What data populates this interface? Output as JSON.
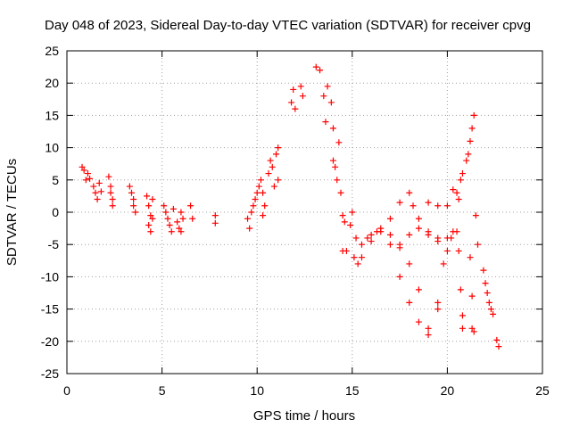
{
  "chart_data": {
    "type": "scatter",
    "title": "Day 048 of 2023, Sidereal Day-to-day VTEC variation (SDTVAR) for receiver cpvg",
    "xlabel": "GPS time / hours",
    "ylabel": "SDTVAR / TECUs",
    "xlim": [
      0,
      25
    ],
    "ylim": [
      -25,
      25
    ],
    "xticks": [
      "0",
      "5",
      "10",
      "15",
      "20",
      "25"
    ],
    "yticks": [
      "25",
      "20",
      "15",
      "10",
      "5",
      "0",
      "-5",
      "-10",
      "-15",
      "-20",
      "-25"
    ],
    "grid": true,
    "marker": "+",
    "color": "#ff0000",
    "series": [
      {
        "name": "SDTVAR",
        "points": [
          [
            0.8,
            7.0
          ],
          [
            0.9,
            6.5
          ],
          [
            1.0,
            5.0
          ],
          [
            1.1,
            6.0
          ],
          [
            1.2,
            5.2
          ],
          [
            1.4,
            4.0
          ],
          [
            1.5,
            3.0
          ],
          [
            1.6,
            2.0
          ],
          [
            1.7,
            4.5
          ],
          [
            1.8,
            3.2
          ],
          [
            2.2,
            5.5
          ],
          [
            2.3,
            4.0
          ],
          [
            2.3,
            3.0
          ],
          [
            2.4,
            2.0
          ],
          [
            2.4,
            1.0
          ],
          [
            3.3,
            4.0
          ],
          [
            3.4,
            3.0
          ],
          [
            3.5,
            2.0
          ],
          [
            3.5,
            1.0
          ],
          [
            3.6,
            0.0
          ],
          [
            4.2,
            2.5
          ],
          [
            4.3,
            1.0
          ],
          [
            4.4,
            -0.5
          ],
          [
            4.3,
            -2.0
          ],
          [
            4.4,
            -3.0
          ],
          [
            4.5,
            2.0
          ],
          [
            4.5,
            -1.0
          ],
          [
            5.1,
            1.0
          ],
          [
            5.2,
            0.0
          ],
          [
            5.3,
            -1.0
          ],
          [
            5.4,
            -2.0
          ],
          [
            5.5,
            -3.0
          ],
          [
            5.6,
            0.5
          ],
          [
            5.8,
            -1.5
          ],
          [
            5.9,
            -2.5
          ],
          [
            6.0,
            -3.0
          ],
          [
            6.0,
            0.0
          ],
          [
            6.1,
            -1.0
          ],
          [
            6.5,
            1.0
          ],
          [
            6.6,
            -1.0
          ],
          [
            7.8,
            -0.5
          ],
          [
            7.8,
            -1.7
          ],
          [
            9.5,
            -1.0
          ],
          [
            9.6,
            -2.5
          ],
          [
            9.7,
            0.0
          ],
          [
            9.8,
            1.0
          ],
          [
            9.9,
            2.0
          ],
          [
            10.0,
            3.0
          ],
          [
            10.1,
            4.0
          ],
          [
            10.2,
            5.0
          ],
          [
            10.3,
            3.0
          ],
          [
            10.3,
            -0.5
          ],
          [
            10.4,
            1.0
          ],
          [
            10.6,
            6.0
          ],
          [
            10.7,
            8.0
          ],
          [
            10.8,
            7.0
          ],
          [
            10.9,
            4.0
          ],
          [
            11.0,
            9.0
          ],
          [
            11.1,
            10.0
          ],
          [
            11.1,
            5.0
          ],
          [
            11.8,
            17.0
          ],
          [
            11.9,
            19.0
          ],
          [
            12.0,
            16.0
          ],
          [
            12.3,
            19.5
          ],
          [
            12.4,
            18.0
          ],
          [
            13.1,
            22.5
          ],
          [
            13.3,
            22.0
          ],
          [
            13.5,
            18.0
          ],
          [
            13.6,
            14.0
          ],
          [
            13.7,
            19.5
          ],
          [
            13.9,
            17.0
          ],
          [
            14.0,
            13.0
          ],
          [
            14.0,
            8.0
          ],
          [
            14.1,
            7.0
          ],
          [
            14.2,
            5.0
          ],
          [
            14.3,
            10.8
          ],
          [
            14.4,
            3.0
          ],
          [
            14.5,
            -0.5
          ],
          [
            14.6,
            -1.5
          ],
          [
            14.5,
            -6.0
          ],
          [
            14.7,
            -6.0
          ],
          [
            14.9,
            -2.0
          ],
          [
            15.0,
            0.0
          ],
          [
            15.1,
            -7.0
          ],
          [
            15.2,
            -4.0
          ],
          [
            15.3,
            -8.0
          ],
          [
            15.5,
            -5.0
          ],
          [
            15.8,
            -4.0
          ],
          [
            16.0,
            -3.5
          ],
          [
            16.5,
            -2.5
          ],
          [
            17.0,
            -1.0
          ],
          [
            17.5,
            1.5
          ],
          [
            18.0,
            3.0
          ],
          [
            15.5,
            -7.0
          ],
          [
            16.0,
            -4.5
          ],
          [
            16.5,
            -3.0
          ],
          [
            17.0,
            -5.0
          ],
          [
            17.5,
            -10.0
          ],
          [
            18.0,
            -14.0
          ],
          [
            18.5,
            -17.0
          ],
          [
            19.0,
            -18.0
          ],
          [
            19.5,
            -14.0
          ],
          [
            19.8,
            -8.0
          ],
          [
            20.2,
            -4.0
          ],
          [
            16.3,
            -3.0
          ],
          [
            17.0,
            -3.5
          ],
          [
            17.5,
            -5.0
          ],
          [
            18.0,
            -8.0
          ],
          [
            18.5,
            -12.0
          ],
          [
            19.0,
            -19.0
          ],
          [
            19.5,
            -15.0
          ],
          [
            20.0,
            -6.0
          ],
          [
            20.3,
            -3.0
          ],
          [
            17.5,
            -5.5
          ],
          [
            18.0,
            -3.5
          ],
          [
            18.5,
            -2.5
          ],
          [
            19.0,
            -3.0
          ],
          [
            19.5,
            -4.5
          ],
          [
            20.0,
            -4.0
          ],
          [
            20.5,
            -3.0
          ],
          [
            18.2,
            1.0
          ],
          [
            18.5,
            -1.0
          ],
          [
            19.0,
            -3.5
          ],
          [
            19.5,
            -4.0
          ],
          [
            19.0,
            1.5
          ],
          [
            19.5,
            1.0
          ],
          [
            20.0,
            1.0
          ],
          [
            20.3,
            3.5
          ],
          [
            20.5,
            3.0
          ],
          [
            20.6,
            2.0
          ],
          [
            20.6,
            -6.0
          ],
          [
            20.7,
            -12.0
          ],
          [
            20.8,
            -16.0
          ],
          [
            20.8,
            -18.0
          ],
          [
            20.7,
            5.0
          ],
          [
            20.8,
            6.0
          ],
          [
            21.0,
            8.0
          ],
          [
            21.1,
            9.0
          ],
          [
            21.2,
            11.0
          ],
          [
            21.3,
            13.0
          ],
          [
            21.4,
            15.0
          ],
          [
            21.2,
            -7.0
          ],
          [
            21.3,
            -13.0
          ],
          [
            21.3,
            -18.0
          ],
          [
            21.4,
            -18.5
          ],
          [
            21.5,
            -0.5
          ],
          [
            21.6,
            -5.0
          ],
          [
            21.9,
            -9.0
          ],
          [
            22.0,
            -11.0
          ],
          [
            22.1,
            -12.5
          ],
          [
            22.2,
            -14.0
          ],
          [
            22.3,
            -15.0
          ],
          [
            22.4,
            -15.8
          ],
          [
            22.6,
            -19.8
          ],
          [
            22.7,
            -20.8
          ]
        ]
      }
    ]
  }
}
